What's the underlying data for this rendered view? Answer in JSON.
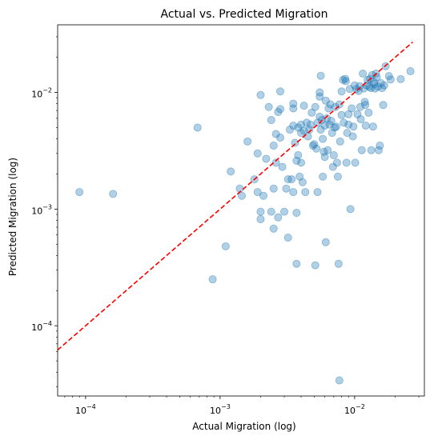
{
  "chart_data": {
    "type": "scatter",
    "title": "Actual vs. Predicted Migration",
    "xlabel": "Actual Migration (log)",
    "ylabel": "Predicted Migration (log)",
    "xscale": "log",
    "yscale": "log",
    "xlim": [
      6.2e-05,
      0.033
    ],
    "ylim": [
      2.5e-05,
      0.038
    ],
    "grid": false,
    "x_ticks": [
      {
        "value": 0.0001,
        "base": "10",
        "exp": "−4"
      },
      {
        "value": 0.001,
        "base": "10",
        "exp": "−3"
      },
      {
        "value": 0.01,
        "base": "10",
        "exp": "−2"
      }
    ],
    "y_ticks": [
      {
        "value": 0.0001,
        "base": "10",
        "exp": "−4"
      },
      {
        "value": 0.001,
        "base": "10",
        "exp": "−3"
      },
      {
        "value": 0.01,
        "base": "10",
        "exp": "−2"
      }
    ],
    "point_color": "#1f77b4",
    "point_alpha": 0.35,
    "reference_line": {
      "style": "dashed",
      "color": "#ff0000",
      "from": [
        6.2e-05,
        6.2e-05
      ],
      "to": [
        0.027,
        0.027
      ]
    },
    "points": [
      [
        9e-05,
        0.0014
      ],
      [
        0.00016,
        0.00135
      ],
      [
        0.00068,
        0.005
      ],
      [
        0.00088,
        0.00025
      ],
      [
        0.0011,
        0.00048
      ],
      [
        0.0012,
        0.0021
      ],
      [
        0.0014,
        0.0015
      ],
      [
        0.00145,
        0.0013
      ],
      [
        0.0016,
        0.0038
      ],
      [
        0.0018,
        0.0018
      ],
      [
        0.0019,
        0.0014
      ],
      [
        0.0019,
        0.003
      ],
      [
        0.002,
        0.0095
      ],
      [
        0.002,
        0.00095
      ],
      [
        0.002,
        0.00082
      ],
      [
        0.0021,
        0.0013
      ],
      [
        0.0022,
        0.0027
      ],
      [
        0.0023,
        0.0075
      ],
      [
        0.0024,
        0.0058
      ],
      [
        0.0024,
        0.00095
      ],
      [
        0.0025,
        0.0015
      ],
      [
        0.0025,
        0.00068
      ],
      [
        0.0025,
        0.0035
      ],
      [
        0.0026,
        0.0044
      ],
      [
        0.0026,
        0.0025
      ],
      [
        0.0027,
        0.0068
      ],
      [
        0.0028,
        0.0102
      ],
      [
        0.0028,
        0.0072
      ],
      [
        0.0028,
        0.0041
      ],
      [
        0.0027,
        0.00085
      ],
      [
        0.0029,
        0.0023
      ],
      [
        0.003,
        0.00095
      ],
      [
        0.0031,
        0.0015
      ],
      [
        0.0032,
        0.0018
      ],
      [
        0.0032,
        0.00057
      ],
      [
        0.0033,
        0.0048
      ],
      [
        0.0034,
        0.0018
      ],
      [
        0.0035,
        0.008
      ],
      [
        0.0035,
        0.0073
      ],
      [
        0.0035,
        0.0052
      ],
      [
        0.0035,
        0.0014
      ],
      [
        0.0036,
        0.0037
      ],
      [
        0.0037,
        0.0026
      ],
      [
        0.0037,
        0.00034
      ],
      [
        0.0037,
        0.00093
      ],
      [
        0.0038,
        0.005
      ],
      [
        0.0038,
        0.0029
      ],
      [
        0.0039,
        0.0019
      ],
      [
        0.004,
        0.0053
      ],
      [
        0.004,
        0.0045
      ],
      [
        0.004,
        0.0025
      ],
      [
        0.0041,
        0.0017
      ],
      [
        0.0042,
        0.0077
      ],
      [
        0.0042,
        0.0047
      ],
      [
        0.0043,
        0.0014
      ],
      [
        0.0044,
        0.0055
      ],
      [
        0.0045,
        0.0042
      ],
      [
        0.0046,
        0.0048
      ],
      [
        0.0047,
        0.0053
      ],
      [
        0.0048,
        0.0067
      ],
      [
        0.0049,
        0.0035
      ],
      [
        0.005,
        0.0036
      ],
      [
        0.0051,
        0.0075
      ],
      [
        0.0051,
        0.00033
      ],
      [
        0.0052,
        0.0033
      ],
      [
        0.0053,
        0.0055
      ],
      [
        0.0053,
        0.0014
      ],
      [
        0.0055,
        0.01
      ],
      [
        0.0055,
        0.0062
      ],
      [
        0.0055,
        0.0092
      ],
      [
        0.0056,
        0.0139
      ],
      [
        0.0056,
        0.0048
      ],
      [
        0.0057,
        0.0058
      ],
      [
        0.0058,
        0.004
      ],
      [
        0.0058,
        0.0019
      ],
      [
        0.0059,
        0.0031
      ],
      [
        0.006,
        0.0052
      ],
      [
        0.006,
        0.0028
      ],
      [
        0.0061,
        0.0085
      ],
      [
        0.0061,
        0.00052
      ],
      [
        0.0062,
        0.006
      ],
      [
        0.0063,
        0.0032
      ],
      [
        0.0064,
        0.0073
      ],
      [
        0.0065,
        0.0053
      ],
      [
        0.0066,
        0.0079
      ],
      [
        0.0067,
        0.0057
      ],
      [
        0.0068,
        0.0045
      ],
      [
        0.0069,
        0.0023
      ],
      [
        0.007,
        0.0029
      ],
      [
        0.0071,
        0.005
      ],
      [
        0.0072,
        0.0075
      ],
      [
        0.0073,
        0.0051
      ],
      [
        0.0074,
        0.0025
      ],
      [
        0.0075,
        0.0019
      ],
      [
        0.0076,
        0.00034
      ],
      [
        0.0077,
        0.0079
      ],
      [
        0.0078,
        0.0038
      ],
      [
        0.008,
        0.0064
      ],
      [
        0.008,
        0.0102
      ],
      [
        0.0082,
        0.0128
      ],
      [
        0.0083,
        0.0055
      ],
      [
        0.0085,
        0.0131
      ],
      [
        0.0086,
        0.0125
      ],
      [
        0.0087,
        0.0025
      ],
      [
        0.0088,
        0.0045
      ],
      [
        0.009,
        0.0065
      ],
      [
        0.009,
        0.0053
      ],
      [
        0.0092,
        0.0107
      ],
      [
        0.0093,
        0.001
      ],
      [
        0.0095,
        0.0073
      ],
      [
        0.0097,
        0.0042
      ],
      [
        0.0098,
        0.0051
      ],
      [
        0.01,
        0.0115
      ],
      [
        0.0101,
        0.0025
      ],
      [
        0.0103,
        0.0107
      ],
      [
        0.0105,
        0.0065
      ],
      [
        0.0107,
        0.0103
      ],
      [
        0.0109,
        0.0113
      ],
      [
        0.011,
        0.0075
      ],
      [
        0.0111,
        0.0059
      ],
      [
        0.0113,
        0.0032
      ],
      [
        0.0115,
        0.0145
      ],
      [
        0.0117,
        0.0108
      ],
      [
        0.0119,
        0.0083
      ],
      [
        0.012,
        0.0078
      ],
      [
        0.0121,
        0.0052
      ],
      [
        0.0123,
        0.0115
      ],
      [
        0.0125,
        0.0128
      ],
      [
        0.0127,
        0.0067
      ],
      [
        0.0129,
        0.0112
      ],
      [
        0.013,
        0.0131
      ],
      [
        0.0132,
        0.0109
      ],
      [
        0.0133,
        0.0032
      ],
      [
        0.0135,
        0.0141
      ],
      [
        0.0137,
        0.0051
      ],
      [
        0.0139,
        0.0123
      ],
      [
        0.014,
        0.0118
      ],
      [
        0.0142,
        0.0108
      ],
      [
        0.0144,
        0.0145
      ],
      [
        0.0146,
        0.0135
      ],
      [
        0.0149,
        0.0112
      ],
      [
        0.0151,
        0.0032
      ],
      [
        0.0154,
        0.0035
      ],
      [
        0.0157,
        0.012
      ],
      [
        0.016,
        0.0109
      ],
      [
        0.0163,
        0.0078
      ],
      [
        0.0166,
        0.0115
      ],
      [
        0.017,
        0.0168
      ],
      [
        0.018,
        0.0138
      ],
      [
        0.0185,
        0.0129
      ],
      [
        0.022,
        0.013
      ],
      [
        0.026,
        0.0152
      ],
      [
        0.0077,
        3.4e-05
      ]
    ]
  }
}
